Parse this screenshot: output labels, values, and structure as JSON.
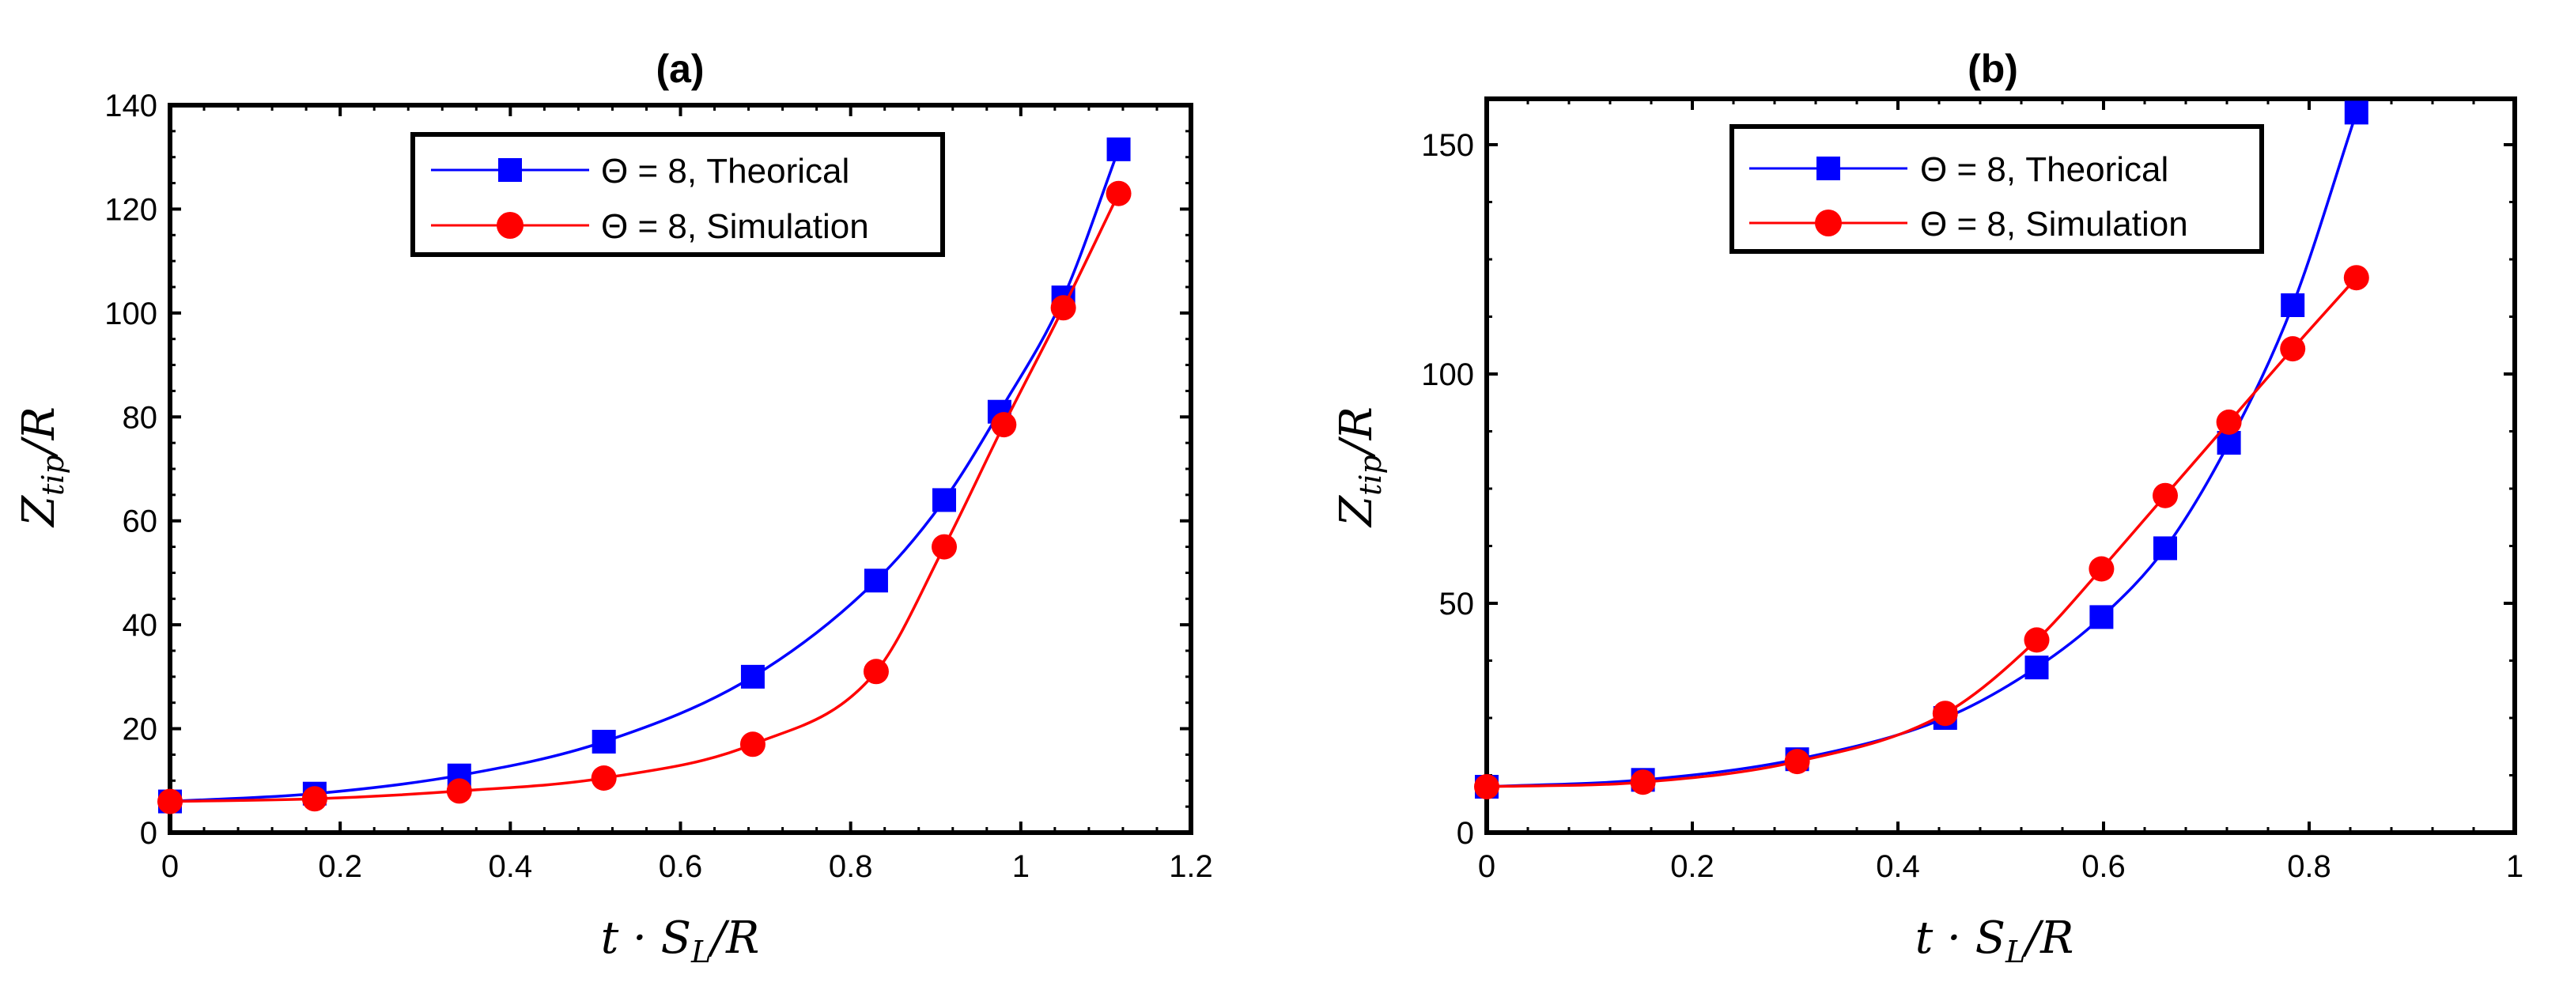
{
  "chart_data": [
    {
      "type": "line",
      "panel": "left",
      "title": "(a)",
      "xlabel": "t · S_L/R",
      "ylabel": "Z_tip/R",
      "xlim": [
        0,
        1.2
      ],
      "ylim": [
        0,
        140
      ],
      "xticks": [
        0,
        0.2,
        0.4,
        0.6,
        0.8,
        1,
        1.2
      ],
      "xtick_labels": [
        "0",
        "0.2",
        "0.4",
        "0.6",
        "0.8",
        "1",
        "1.2"
      ],
      "yticks": [
        0,
        20,
        40,
        60,
        80,
        100,
        120,
        140
      ],
      "ytick_labels": [
        "0",
        "20",
        "40",
        "60",
        "80",
        "100",
        "120",
        "140"
      ],
      "grid": false,
      "legend_position": "top-center",
      "series": [
        {
          "name": "Θ = 8, Theorical",
          "legend_label": "Θ = 8, Theorical",
          "color": "#0000ff",
          "marker": "square",
          "x": [
            0,
            0.17,
            0.34,
            0.51,
            0.685,
            0.83,
            0.91,
            0.975,
            1.05,
            1.115
          ],
          "y": [
            6,
            7.5,
            11,
            17.5,
            30,
            48.5,
            64,
            81,
            103,
            131.5
          ]
        },
        {
          "name": "Θ = 8, Simulation",
          "legend_label": "Θ = 8, Simulation",
          "color": "#ff0000",
          "marker": "circle",
          "x": [
            0,
            0.17,
            0.34,
            0.51,
            0.685,
            0.83,
            0.91,
            0.98,
            1.05,
            1.115
          ],
          "y": [
            6,
            6.5,
            8,
            10.5,
            17,
            31,
            55,
            78.5,
            101,
            123
          ]
        }
      ]
    },
    {
      "type": "line",
      "panel": "right",
      "title": "(b)",
      "xlabel": "t · S_L/R",
      "ylabel": "Z_tip/R",
      "xlim": [
        0,
        1
      ],
      "ylim": [
        0,
        160
      ],
      "xticks": [
        0,
        0.2,
        0.4,
        0.6,
        0.8,
        1
      ],
      "xtick_labels": [
        "0",
        "0.2",
        "0.4",
        "0.6",
        "0.8",
        "1"
      ],
      "yticks": [
        0,
        50,
        100,
        150
      ],
      "ytick_labels": [
        "0",
        "50",
        "100",
        "150"
      ],
      "grid": false,
      "legend_position": "top-left",
      "series": [
        {
          "name": "Θ = 8, Theorical",
          "legend_label": "Θ = 8, Theorical",
          "color": "#0000ff",
          "marker": "square",
          "x": [
            0,
            0.152,
            0.302,
            0.446,
            0.535,
            0.598,
            0.66,
            0.722,
            0.784,
            0.846
          ],
          "y": [
            10,
            11.5,
            16,
            25,
            36,
            47,
            62,
            85,
            115,
            157
          ]
        },
        {
          "name": "Θ = 8, Simulation",
          "legend_label": "Θ = 8, Simulation",
          "color": "#ff0000",
          "marker": "circle",
          "x": [
            0,
            0.152,
            0.302,
            0.446,
            0.535,
            0.598,
            0.66,
            0.722,
            0.784,
            0.846
          ],
          "y": [
            10,
            11,
            15.5,
            26,
            42,
            57.5,
            73.5,
            89.5,
            105.5,
            121
          ]
        }
      ]
    }
  ]
}
